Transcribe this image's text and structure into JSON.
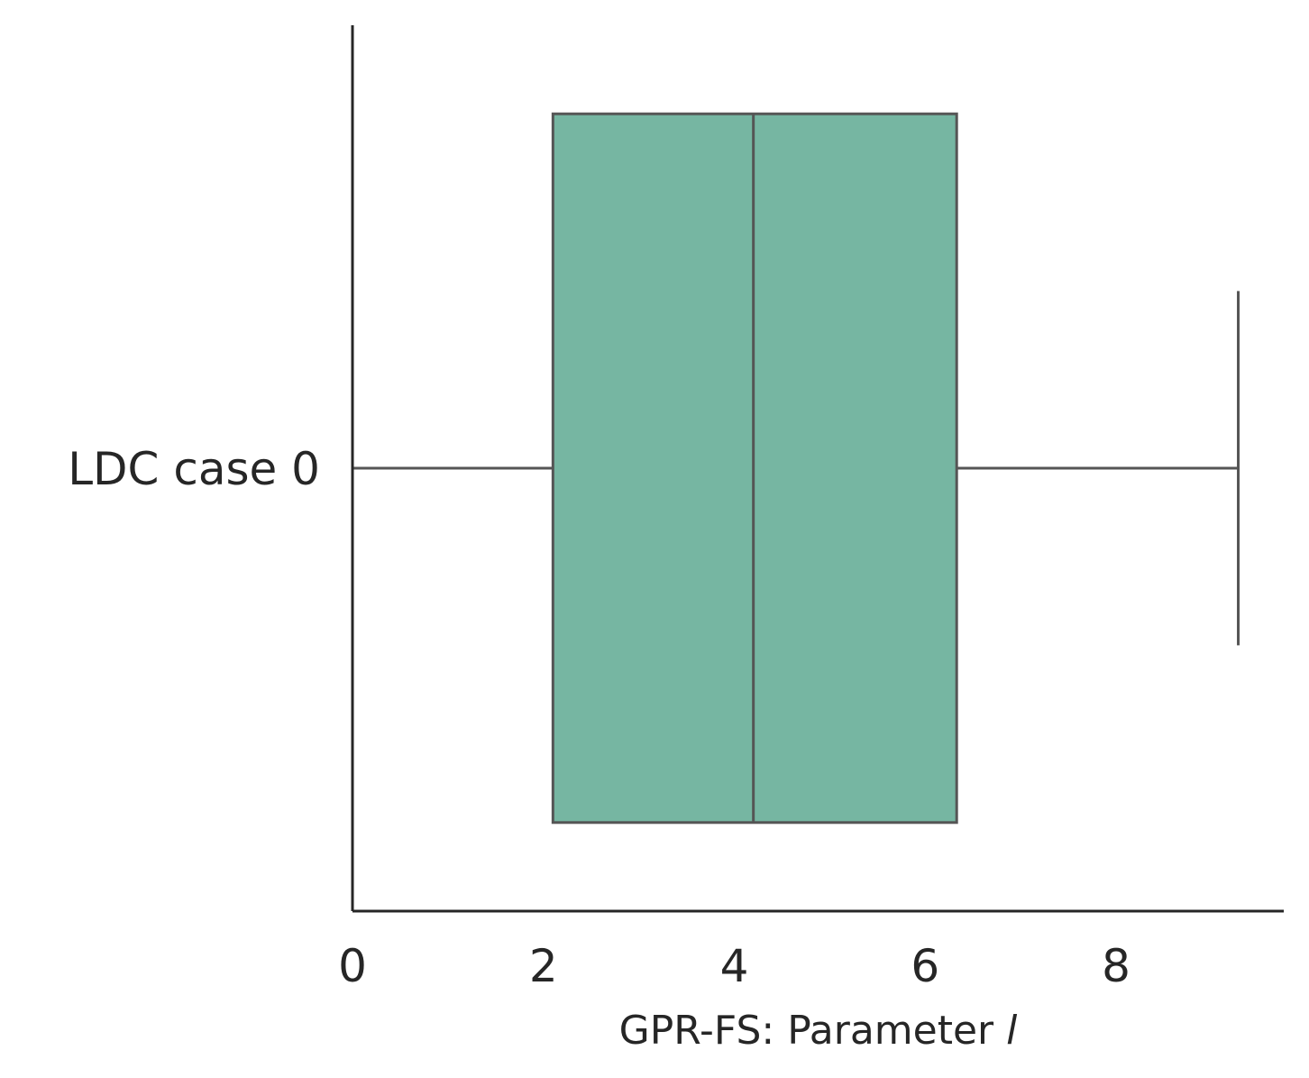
{
  "chart_data": {
    "type": "box",
    "orientation": "horizontal",
    "categories": [
      "LDC case 0"
    ],
    "series": [
      {
        "category": "LDC case 0",
        "whisker_low": 0,
        "q1": 2.1,
        "median": 4.2,
        "q3": 6.33,
        "whisker_high": 9.28
      }
    ],
    "xlabel": {
      "prefix": "GPR-FS: Parameter ",
      "symbol": "l"
    },
    "ylabel": "",
    "xlim": [
      0,
      9.75
    ],
    "xticks": [
      "0",
      "2",
      "4",
      "6",
      "8"
    ],
    "grid": false,
    "colors": {
      "box_fill": "#76b6a2",
      "box_edge": "#555555",
      "axis": "#262626",
      "text": "#262626"
    }
  }
}
